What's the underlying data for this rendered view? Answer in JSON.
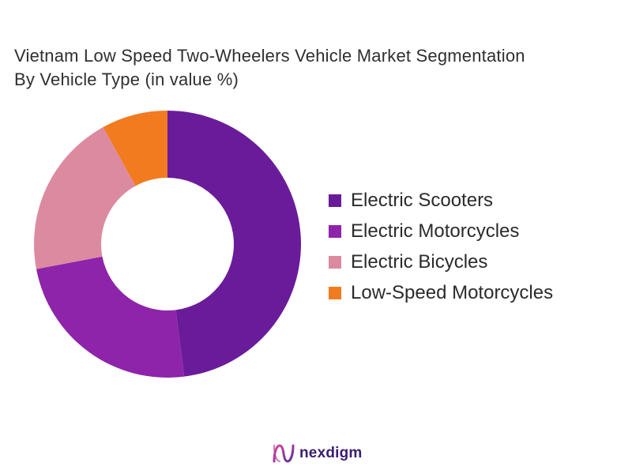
{
  "title": {
    "line1": "Vietnam Low Speed Two-Wheelers Vehicle Market Segmentation",
    "line2": "By Vehicle Type (in value %)"
  },
  "chart_data": {
    "type": "pie",
    "variant": "donut",
    "title": "Vietnam Low Speed Two-Wheelers Vehicle Market Segmentation By Vehicle Type (in value %)",
    "categories": [
      "Electric Scooters",
      "Electric Motorcycles",
      "Electric Bicycles",
      "Low-Speed Motorcycles"
    ],
    "values": [
      48,
      24,
      20,
      8
    ],
    "colors": [
      "#6a1b9a",
      "#8e24aa",
      "#dc8aa0",
      "#f27b1f"
    ],
    "legend_position": "right",
    "start_angle": "12 o'clock",
    "direction": "clockwise"
  },
  "legend": {
    "items": [
      {
        "label": "Electric Scooters",
        "color": "#6a1b9a"
      },
      {
        "label": "Electric Motorcycles",
        "color": "#8e24aa"
      },
      {
        "label": "Electric Bicycles",
        "color": "#dc8aa0"
      },
      {
        "label": "Low-Speed Motorcycles",
        "color": "#f27b1f"
      }
    ]
  },
  "brand": {
    "name": "nexdigm",
    "logo_icon": "nexdigm-logo-icon"
  }
}
